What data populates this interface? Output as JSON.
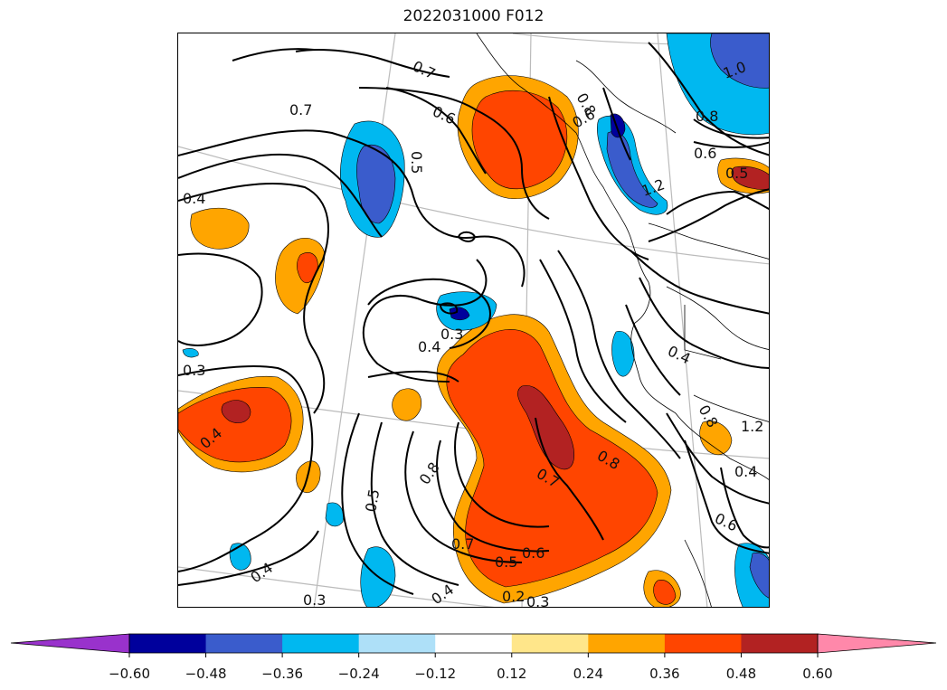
{
  "title": "2022031000 F012",
  "colorbar": {
    "under_color": "#9932cc",
    "over_color": "#ff88aa",
    "bins": [
      {
        "from": -0.6,
        "to": -0.48,
        "color": "#00009c"
      },
      {
        "from": -0.48,
        "to": -0.36,
        "color": "#3a5ccc"
      },
      {
        "from": -0.36,
        "to": -0.24,
        "color": "#00b8f0"
      },
      {
        "from": -0.24,
        "to": -0.12,
        "color": "#aee0f8"
      },
      {
        "from": -0.12,
        "to": 0.12,
        "color": "#ffffff"
      },
      {
        "from": 0.12,
        "to": 0.24,
        "color": "#ffe68a"
      },
      {
        "from": 0.24,
        "to": 0.36,
        "color": "#ffa500"
      },
      {
        "from": 0.36,
        "to": 0.48,
        "color": "#ff4500"
      },
      {
        "from": 0.48,
        "to": 0.6,
        "color": "#b22222"
      }
    ],
    "ticks": [
      "−0.60",
      "−0.48",
      "−0.36",
      "−0.24",
      "−0.12",
      "0.12",
      "0.24",
      "0.36",
      "0.48",
      "0.60"
    ]
  },
  "contour_labels": [
    "0.7",
    "0.7",
    "0.6",
    "0.6",
    "0.8",
    "1.0",
    "0.8",
    "0.6",
    "0.5",
    "0.5",
    "0.4",
    "0.3",
    "0.4",
    "0.4",
    "0.3",
    "0.4",
    "0.8",
    "0.7",
    "0.8",
    "0.5",
    "0.7",
    "0.6",
    "0.5",
    "0.4",
    "0.3",
    "0.2",
    "0.3",
    "0.4",
    "0.6",
    "1.2",
    "0.4",
    "0.8",
    "1.2"
  ]
}
